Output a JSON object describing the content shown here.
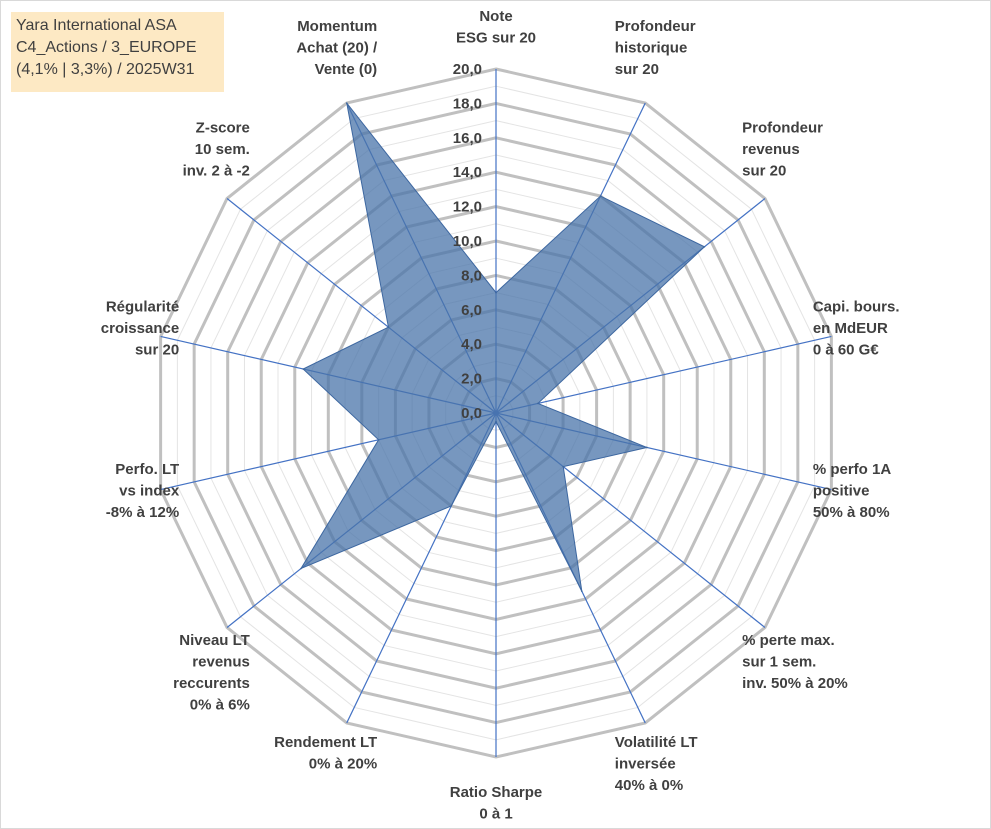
{
  "info_box": {
    "line1": "Yara International ASA",
    "line2": "C4_Actions / 3_EUROPE",
    "line3": "(4,1% | 3,3%) / 2025W31"
  },
  "colors": {
    "fill": "#4a74aa",
    "spoke": "#4472c4",
    "major_grid": "#c0c0c0",
    "minor_grid": "#e4e4e4",
    "text": "#404040",
    "info_bg": "#fde9c4"
  },
  "chart_data": {
    "type": "radar",
    "rmin": 0,
    "rmax": 20,
    "major_step": 2,
    "minor_step": 1,
    "tick_labels": [
      "0,0",
      "2,0",
      "4,0",
      "6,0",
      "8,0",
      "10,0",
      "12,0",
      "14,0",
      "16,0",
      "18,0",
      "20,0"
    ],
    "axes": [
      {
        "label": [
          "Note",
          "ESG sur 20"
        ],
        "value": 7.0
      },
      {
        "label": [
          "Profondeur",
          "historique",
          "sur 20"
        ],
        "value": 14.0
      },
      {
        "label": [
          "Profondeur",
          "revenus",
          "sur 20"
        ],
        "value": 15.5
      },
      {
        "label": [
          "Capi. bours.",
          "en MdEUR",
          "0 à 60 G€"
        ],
        "value": 2.5
      },
      {
        "label": [
          "% perfo 1A",
          "positive",
          "50% à 80%"
        ],
        "value": 9.0
      },
      {
        "label": [
          "% perte max.",
          "sur 1 sem.",
          "inv. 50% à 20%"
        ],
        "value": 5.0
      },
      {
        "label": [
          "Volatilité LT",
          "inversée",
          "40% à 0%"
        ],
        "value": 11.5
      },
      {
        "label": [
          "Ratio Sharpe",
          "0 à 1"
        ],
        "value": 0.5
      },
      {
        "label": [
          "Rendement LT",
          "0% à 20%"
        ],
        "value": 6.0
      },
      {
        "label": [
          "Niveau LT",
          "revenus",
          "reccurents",
          "0% à 6%"
        ],
        "value": 14.5
      },
      {
        "label": [
          "Perfo. LT",
          "vs index",
          "-8% à 12%"
        ],
        "value": 7.0
      },
      {
        "label": [
          "Régularité",
          "croissance",
          "sur 20"
        ],
        "value": 11.5
      },
      {
        "label": [
          "Z-score",
          "10 sem.",
          "inv. 2 à -2"
        ],
        "value": 8.0
      },
      {
        "label": [
          "Momentum",
          "Achat (20) /",
          "Vente (0)"
        ],
        "value": 20.0
      }
    ]
  }
}
